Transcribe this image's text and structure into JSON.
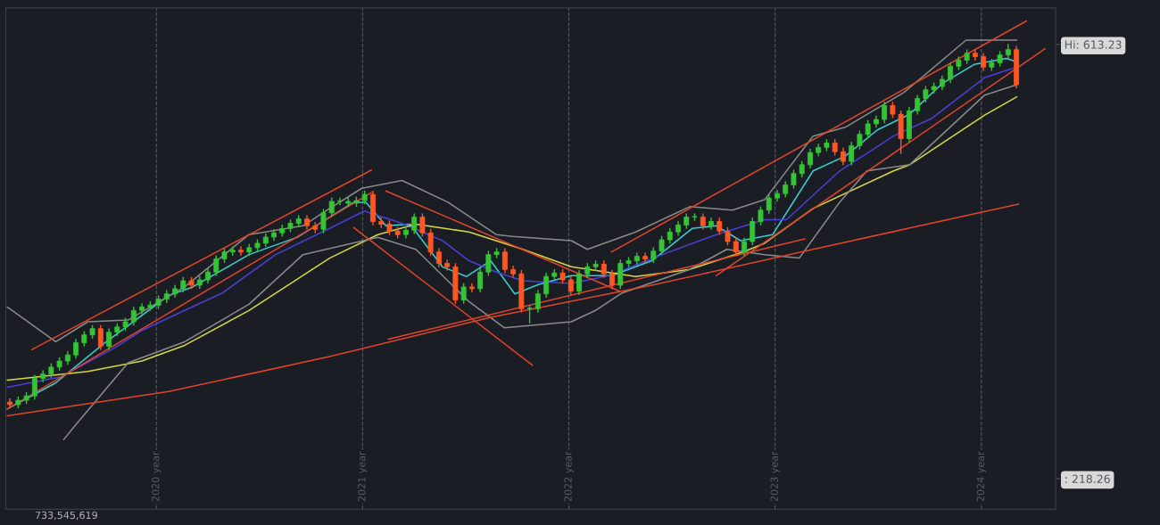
{
  "chart_data": {
    "type": "candlestick",
    "xlim": [
      2019.27,
      2024.36
    ],
    "ylim": [
      190.5,
      646.5
    ],
    "xticks": [
      {
        "value": 2020,
        "label": "2020 year"
      },
      {
        "value": 2021,
        "label": "2021 year"
      },
      {
        "value": 2022,
        "label": "2022 year"
      },
      {
        "value": 2023,
        "label": "2023 year"
      },
      {
        "value": 2024,
        "label": "2024 year"
      }
    ],
    "yticks": [
      {
        "value": 613.23,
        "label": "Hi: 613.23"
      },
      {
        "value": 218.26,
        "label": ": 218.26"
      }
    ],
    "grid": "x",
    "annotations": [
      "733,545,619"
    ],
    "x": [
      2019.29,
      2019.33,
      2019.37,
      2019.41,
      2019.45,
      2019.49,
      2019.53,
      2019.57,
      2019.61,
      2019.65,
      2019.69,
      2019.73,
      2019.77,
      2019.81,
      2019.85,
      2019.89,
      2019.93,
      2019.97,
      2020.01,
      2020.05,
      2020.09,
      2020.13,
      2020.17,
      2020.21,
      2020.25,
      2020.29,
      2020.33,
      2020.37,
      2020.41,
      2020.45,
      2020.49,
      2020.53,
      2020.57,
      2020.61,
      2020.65,
      2020.69,
      2020.73,
      2020.77,
      2020.81,
      2020.85,
      2020.89,
      2020.93,
      2020.97,
      2021.01,
      2021.05,
      2021.09,
      2021.13,
      2021.17,
      2021.21,
      2021.25,
      2021.29,
      2021.33,
      2021.37,
      2021.41,
      2021.45,
      2021.49,
      2021.53,
      2021.57,
      2021.61,
      2021.65,
      2021.69,
      2021.73,
      2021.77,
      2021.81,
      2021.85,
      2021.89,
      2021.93,
      2021.97,
      2022.01,
      2022.05,
      2022.09,
      2022.13,
      2022.17,
      2022.21,
      2022.25,
      2022.29,
      2022.33,
      2022.37,
      2022.41,
      2022.45,
      2022.49,
      2022.53,
      2022.57,
      2022.61,
      2022.65,
      2022.69,
      2022.73,
      2022.77,
      2022.81,
      2022.85,
      2022.89,
      2022.93,
      2022.97,
      2023.01,
      2023.05,
      2023.09,
      2023.13,
      2023.17,
      2023.21,
      2023.25,
      2023.29,
      2023.33,
      2023.37,
      2023.41,
      2023.45,
      2023.49,
      2023.53,
      2023.57,
      2023.61,
      2023.65,
      2023.69,
      2023.73,
      2023.77,
      2023.81,
      2023.85,
      2023.89,
      2023.93,
      2023.97,
      2024.01,
      2024.05,
      2024.09,
      2024.13,
      2024.17
    ],
    "ohlc": [
      [
        288.0,
        291.0,
        282.7,
        285.7
      ],
      [
        285.7,
        292.6,
        282.7,
        289.6
      ],
      [
        289.6,
        296.6,
        286.6,
        293.6
      ],
      [
        293.6,
        312.5,
        290.6,
        309.5
      ],
      [
        309.5,
        316.4,
        306.5,
        313.4
      ],
      [
        313.4,
        322.8,
        310.4,
        319.8
      ],
      [
        319.8,
        328.3,
        316.8,
        325.3
      ],
      [
        325.3,
        333.9,
        322.3,
        330.9
      ],
      [
        330.9,
        345.0,
        327.9,
        342.0
      ],
      [
        342.0,
        352.1,
        339.0,
        349.1
      ],
      [
        349.1,
        357.7,
        346.1,
        354.7
      ],
      [
        354.7,
        357.7,
        335.8,
        338.8
      ],
      [
        338.8,
        354.5,
        335.8,
        351.5
      ],
      [
        351.5,
        359.3,
        348.5,
        356.3
      ],
      [
        356.3,
        364.0,
        353.3,
        361.0
      ],
      [
        361.0,
        374.3,
        358.0,
        371.3
      ],
      [
        371.3,
        377.5,
        368.3,
        374.5
      ],
      [
        374.5,
        379.1,
        371.5,
        376.1
      ],
      [
        376.1,
        384.6,
        373.1,
        381.6
      ],
      [
        381.6,
        389.4,
        378.6,
        386.4
      ],
      [
        386.4,
        394.1,
        383.4,
        391.1
      ],
      [
        391.1,
        401.3,
        388.1,
        398.3
      ],
      [
        398.3,
        401.3,
        391.3,
        394.3
      ],
      [
        394.3,
        402.1,
        391.3,
        399.1
      ],
      [
        399.1,
        409.2,
        396.1,
        406.2
      ],
      [
        406.2,
        421.1,
        403.2,
        418.1
      ],
      [
        418.1,
        427.5,
        415.1,
        424.5
      ],
      [
        424.5,
        429.1,
        421.5,
        426.1
      ],
      [
        426.1,
        429.1,
        421.5,
        424.5
      ],
      [
        424.5,
        431.4,
        421.5,
        428.4
      ],
      [
        428.4,
        435.4,
        425.4,
        432.4
      ],
      [
        432.4,
        441.0,
        429.4,
        438.0
      ],
      [
        438.0,
        444.9,
        435.0,
        441.9
      ],
      [
        441.9,
        448.9,
        438.9,
        445.9
      ],
      [
        445.9,
        453.6,
        442.9,
        450.6
      ],
      [
        450.6,
        457.6,
        447.6,
        454.6
      ],
      [
        454.6,
        457.6,
        445.3,
        448.3
      ],
      [
        448.3,
        451.3,
        442.1,
        445.1
      ],
      [
        445.1,
        463.1,
        442.1,
        460.1
      ],
      [
        460.1,
        473.5,
        457.1,
        470.5
      ],
      [
        470.5,
        473.5,
        467.5,
        470.5
      ],
      [
        470.5,
        473.5,
        465.9,
        468.9
      ],
      [
        468.9,
        474.3,
        465.9,
        471.3
      ],
      [
        471.3,
        479.8,
        468.3,
        476.8
      ],
      [
        476.8,
        479.8,
        449.2,
        452.2
      ],
      [
        452.2,
        455.2,
        446.8,
        449.8
      ],
      [
        449.8,
        452.8,
        440.5,
        443.5
      ],
      [
        443.5,
        446.5,
        437.3,
        440.3
      ],
      [
        440.3,
        447.3,
        437.3,
        444.3
      ],
      [
        444.3,
        459.2,
        441.3,
        456.2
      ],
      [
        456.2,
        459.2,
        438.9,
        441.9
      ],
      [
        441.9,
        444.9,
        421.5,
        424.5
      ],
      [
        424.5,
        427.5,
        411.1,
        414.1
      ],
      [
        414.1,
        417.1,
        408.0,
        411.0
      ],
      [
        411.0,
        414.0,
        377.8,
        380.8
      ],
      [
        380.8,
        395.7,
        377.8,
        392.7
      ],
      [
        392.7,
        395.7,
        388.1,
        391.1
      ],
      [
        391.1,
        409.2,
        388.1,
        406.2
      ],
      [
        406.2,
        425.1,
        403.2,
        422.1
      ],
      [
        422.1,
        427.5,
        419.1,
        424.5
      ],
      [
        424.5,
        427.5,
        405.6,
        408.6
      ],
      [
        408.6,
        411.6,
        401.6,
        404.6
      ],
      [
        404.6,
        407.6,
        369.9,
        372.9
      ],
      [
        372.9,
        375.9,
        360.0,
        372.9
      ],
      [
        372.9,
        389.4,
        369.9,
        386.4
      ],
      [
        386.4,
        405.2,
        383.4,
        402.2
      ],
      [
        402.2,
        408.4,
        399.2,
        405.4
      ],
      [
        405.4,
        408.4,
        396.1,
        399.1
      ],
      [
        399.1,
        402.1,
        385.8,
        388.8
      ],
      [
        388.8,
        407.6,
        385.8,
        404.6
      ],
      [
        404.6,
        414.0,
        401.6,
        411.0
      ],
      [
        411.0,
        416.4,
        408.0,
        413.4
      ],
      [
        413.4,
        416.4,
        401.6,
        404.6
      ],
      [
        404.6,
        407.6,
        391.3,
        394.3
      ],
      [
        394.3,
        417.1,
        391.3,
        414.1
      ],
      [
        414.1,
        419.5,
        411.1,
        416.5
      ],
      [
        416.5,
        423.5,
        413.5,
        420.5
      ],
      [
        420.5,
        423.5,
        415.1,
        418.1
      ],
      [
        418.1,
        428.3,
        415.1,
        425.3
      ],
      [
        425.3,
        438.6,
        422.3,
        435.6
      ],
      [
        435.6,
        445.7,
        432.6,
        442.7
      ],
      [
        442.7,
        452.0,
        439.7,
        449.0
      ],
      [
        449.0,
        459.2,
        446.0,
        456.2
      ],
      [
        456.2,
        459.2,
        453.2,
        456.2
      ],
      [
        456.2,
        459.2,
        445.3,
        448.3
      ],
      [
        448.3,
        455.2,
        445.3,
        452.2
      ],
      [
        452.2,
        455.2,
        440.5,
        443.5
      ],
      [
        443.5,
        446.5,
        431.0,
        434.0
      ],
      [
        434.0,
        437.0,
        421.5,
        424.5
      ],
      [
        424.5,
        437.0,
        421.5,
        434.0
      ],
      [
        434.0,
        455.2,
        431.0,
        452.2
      ],
      [
        452.2,
        465.5,
        449.2,
        462.5
      ],
      [
        462.5,
        476.6,
        459.5,
        473.6
      ],
      [
        473.6,
        480.6,
        470.6,
        477.6
      ],
      [
        477.6,
        488.5,
        474.6,
        485.5
      ],
      [
        485.5,
        498.8,
        482.5,
        495.8
      ],
      [
        495.8,
        506.8,
        492.8,
        503.8
      ],
      [
        503.8,
        517.9,
        500.8,
        514.9
      ],
      [
        514.9,
        522.6,
        511.9,
        519.6
      ],
      [
        519.6,
        526.6,
        516.6,
        523.6
      ],
      [
        523.6,
        526.6,
        512.7,
        515.7
      ],
      [
        515.7,
        518.7,
        503.9,
        506.9
      ],
      [
        506.9,
        524.2,
        503.9,
        521.2
      ],
      [
        521.2,
        534.5,
        518.2,
        531.5
      ],
      [
        531.5,
        544.0,
        528.5,
        541.0
      ],
      [
        541.0,
        548.0,
        538.0,
        545.0
      ],
      [
        545.0,
        560.7,
        542.0,
        557.7
      ],
      [
        557.7,
        560.7,
        546.8,
        549.8
      ],
      [
        549.8,
        552.8,
        514.1,
        527.6
      ],
      [
        527.6,
        555.9,
        524.6,
        552.9
      ],
      [
        552.9,
        567.0,
        549.9,
        564.0
      ],
      [
        564.0,
        575.0,
        561.0,
        572.0
      ],
      [
        572.0,
        578.1,
        569.0,
        575.1
      ],
      [
        575.1,
        584.5,
        572.1,
        581.5
      ],
      [
        581.5,
        596.4,
        578.5,
        593.4
      ],
      [
        593.4,
        601.9,
        590.4,
        598.9
      ],
      [
        598.9,
        608.3,
        595.9,
        605.3
      ],
      [
        605.3,
        608.3,
        599.1,
        602.1
      ],
      [
        602.1,
        605.1,
        589.6,
        592.6
      ],
      [
        592.6,
        599.6,
        589.6,
        596.6
      ],
      [
        596.6,
        606.7,
        593.6,
        603.7
      ],
      [
        603.7,
        613.23,
        600.7,
        608.5
      ],
      [
        608.5,
        611.5,
        573.7,
        576.7
      ]
    ],
    "colors": [
      "#ff5722",
      "#35c435",
      "#35c435",
      "#35c435",
      "#35c435",
      "#35c435",
      "#35c435",
      "#35c435",
      "#35c435",
      "#35c435",
      "#35c435",
      "#ff5722",
      "#35c435",
      "#35c435",
      "#35c435",
      "#35c435",
      "#35c435",
      "#35c435",
      "#35c435",
      "#35c435",
      "#35c435",
      "#35c435",
      "#ff5722",
      "#35c435",
      "#35c435",
      "#35c435",
      "#35c435",
      "#35c435",
      "#ff5722",
      "#35c435",
      "#35c435",
      "#35c435",
      "#35c435",
      "#35c435",
      "#35c435",
      "#35c435",
      "#ff5722",
      "#ff5722",
      "#35c435",
      "#35c435",
      "#35c435",
      "#35c435",
      "#35c435",
      "#35c435",
      "#ff5722",
      "#ff5722",
      "#ff5722",
      "#ff5722",
      "#35c435",
      "#35c435",
      "#ff5722",
      "#ff5722",
      "#ff5722",
      "#ff5722",
      "#ff5722",
      "#35c435",
      "#ff5722",
      "#35c435",
      "#35c435",
      "#35c435",
      "#ff5722",
      "#ff5722",
      "#ff5722",
      "#35c435",
      "#35c435",
      "#35c435",
      "#35c435",
      "#ff5722",
      "#ff5722",
      "#35c435",
      "#35c435",
      "#35c435",
      "#ff5722",
      "#ff5722",
      "#35c435",
      "#35c435",
      "#35c435",
      "#ff5722",
      "#35c435",
      "#35c435",
      "#35c435",
      "#35c435",
      "#35c435",
      "#35c435",
      "#ff5722",
      "#35c435",
      "#ff5722",
      "#ff5722",
      "#ff5722",
      "#35c435",
      "#35c435",
      "#35c435",
      "#35c435",
      "#35c435",
      "#35c435",
      "#35c435",
      "#35c435",
      "#35c435",
      "#35c435",
      "#35c435",
      "#ff5722",
      "#ff5722",
      "#35c435",
      "#35c435",
      "#35c435",
      "#35c435",
      "#35c435",
      "#ff5722",
      "#ff5722",
      "#35c435",
      "#35c435",
      "#35c435",
      "#35c435",
      "#35c435",
      "#35c435",
      "#35c435",
      "#35c435",
      "#ff5722",
      "#ff5722",
      "#35c435",
      "#35c435",
      "#35c435",
      "#ff5722"
    ],
    "series": [
      {
        "type": "line",
        "color": "#33d1d1",
        "x": [
          2019.277,
          2019.512,
          2019.746,
          2020.059,
          2020.176,
          2020.449,
          2020.684,
          2020.957,
          2021.016,
          2021.113,
          2021.23,
          2021.387,
          2021.504,
          2021.621,
          2021.738,
          2021.855,
          2022.012,
          2022.207,
          2022.402,
          2022.598,
          2022.715,
          2022.832,
          2022.988,
          2023.184,
          2023.34,
          2023.496,
          2023.652,
          2023.809,
          2023.965,
          2024.121,
          2024.172
        ],
        "values": [
          281.7,
          305.5,
          341.2,
          384.8,
          392.7,
          422.1,
          437.9,
          469.7,
          469.7,
          448.3,
          449.8,
          411.0,
          402.2,
          416.5,
          386.4,
          395.1,
          403.0,
          403.0,
          416.5,
          445.9,
          448.3,
          434.8,
          440.3,
          498.2,
          511.7,
          535.5,
          549.8,
          577.5,
          595.0,
          600.5,
          597.4
        ]
      },
      {
        "type": "line",
        "color": "#4a3fd6",
        "x": [
          2019.277,
          2019.539,
          2019.797,
          2019.93,
          2020.137,
          2020.32,
          2020.578,
          2020.84,
          2021.008,
          2021.191,
          2021.387,
          2021.516,
          2021.648,
          2021.777,
          2022.012,
          2022.195,
          2022.453,
          2022.715,
          2022.949,
          2023.055,
          2023.313,
          2023.574,
          2023.758,
          2024.016,
          2024.172
        ],
        "values": [
          301.5,
          311.0,
          337.2,
          353.1,
          371.3,
          387.2,
          422.1,
          445.9,
          461.7,
          450.6,
          434.8,
          416.5,
          406.2,
          398.3,
          395.9,
          403.0,
          422.1,
          440.3,
          453.8,
          453.8,
          498.2,
          529.9,
          545.8,
          583.1,
          592.6
        ]
      },
      {
        "type": "line",
        "color": "#d8d83a",
        "x": [
          2019.277,
          2019.668,
          2019.93,
          2020.137,
          2020.449,
          2020.84,
          2021.074,
          2021.258,
          2021.516,
          2021.777,
          2022.012,
          2022.324,
          2022.586,
          2022.844,
          2022.949,
          2023.184,
          2023.574,
          2023.652,
          2024.016,
          2024.172
        ],
        "values": [
          307.9,
          315.8,
          325.3,
          339.6,
          371.3,
          418.9,
          440.3,
          449.8,
          442.7,
          426.9,
          411.0,
          402.2,
          408.6,
          424.5,
          432.4,
          464.1,
          498.2,
          503.8,
          549.0,
          565.6
        ]
      },
      {
        "type": "line",
        "color": "#8a8a8a",
        "x": [
          2019.277,
          2019.512,
          2019.668,
          2019.863,
          2020.137,
          2020.449,
          2020.711,
          2020.84,
          2020.996,
          2021.191,
          2021.414,
          2021.648,
          2021.727,
          2022.012,
          2022.09,
          2022.324,
          2022.586,
          2022.793,
          2022.949,
          2023.184,
          2023.34,
          2023.625,
          2023.926,
          2024.172
        ],
        "values": [
          374.5,
          342.8,
          361.0,
          362.6,
          392.7,
          440.3,
          448.3,
          464.1,
          482.4,
          489.5,
          469.7,
          440.3,
          438.7,
          434.8,
          426.9,
          442.7,
          465.7,
          462.5,
          472.0,
          529.9,
          537.9,
          569.6,
          617.2,
          617.2
        ]
      },
      {
        "type": "line",
        "color": "#8a8a8a",
        "x": [
          2019.551,
          2019.602,
          2019.863,
          2020.137,
          2020.449,
          2020.711,
          2021.074,
          2021.258,
          2021.516,
          2021.688,
          2022.012,
          2022.129,
          2022.258,
          2022.586,
          2022.766,
          2022.949,
          2023.117,
          2023.313,
          2023.445,
          2023.652,
          2024.016,
          2024.172
        ],
        "values": [
          253.9,
          265.8,
          323.7,
          342.8,
          376.9,
          422.1,
          437.9,
          426.9,
          379.3,
          355.5,
          361.0,
          371.3,
          387.2,
          408.6,
          426.9,
          422.1,
          418.9,
          469.7,
          498.2,
          503.8,
          567.2,
          576.7
        ]
      },
      {
        "type": "line",
        "color": "#e0452a",
        "x": [
          2019.395,
          2021.043
        ],
        "values": [
          335.6,
          499.0
        ]
      },
      {
        "type": "line",
        "color": "#e0452a",
        "x": [
          2019.277,
          2021.043
        ],
        "values": [
          281.7,
          478.4
        ]
      },
      {
        "type": "line",
        "color": "#e0452a",
        "x": [
          2020.957,
          2021.824
        ],
        "values": [
          446.7,
          321.4
        ]
      },
      {
        "type": "line",
        "color": "#e0452a",
        "x": [
          2021.113,
          2022.246
        ],
        "values": [
          480.0,
          388.8
        ]
      },
      {
        "type": "line",
        "color": "#e0452a",
        "x": [
          2021.125,
          2023.145
        ],
        "values": [
          345.2,
          436.4
        ]
      },
      {
        "type": "line",
        "color": "#e0452a",
        "x": [
          2019.277,
          2020.059,
          2020.84,
          2021.621,
          2022.402,
          2023.184,
          2024.18
        ],
        "values": [
          275.4,
          297.6,
          329.3,
          365.0,
          394.3,
          426.9,
          468.1
        ]
      },
      {
        "type": "line",
        "color": "#e0452a",
        "x": [
          2022.207,
          2024.219
        ],
        "values": [
          424.5,
          634.6
        ]
      },
      {
        "type": "line",
        "color": "#e0452a",
        "x": [
          2022.715,
          2024.309
        ],
        "values": [
          403.0,
          609.3
        ]
      }
    ]
  }
}
